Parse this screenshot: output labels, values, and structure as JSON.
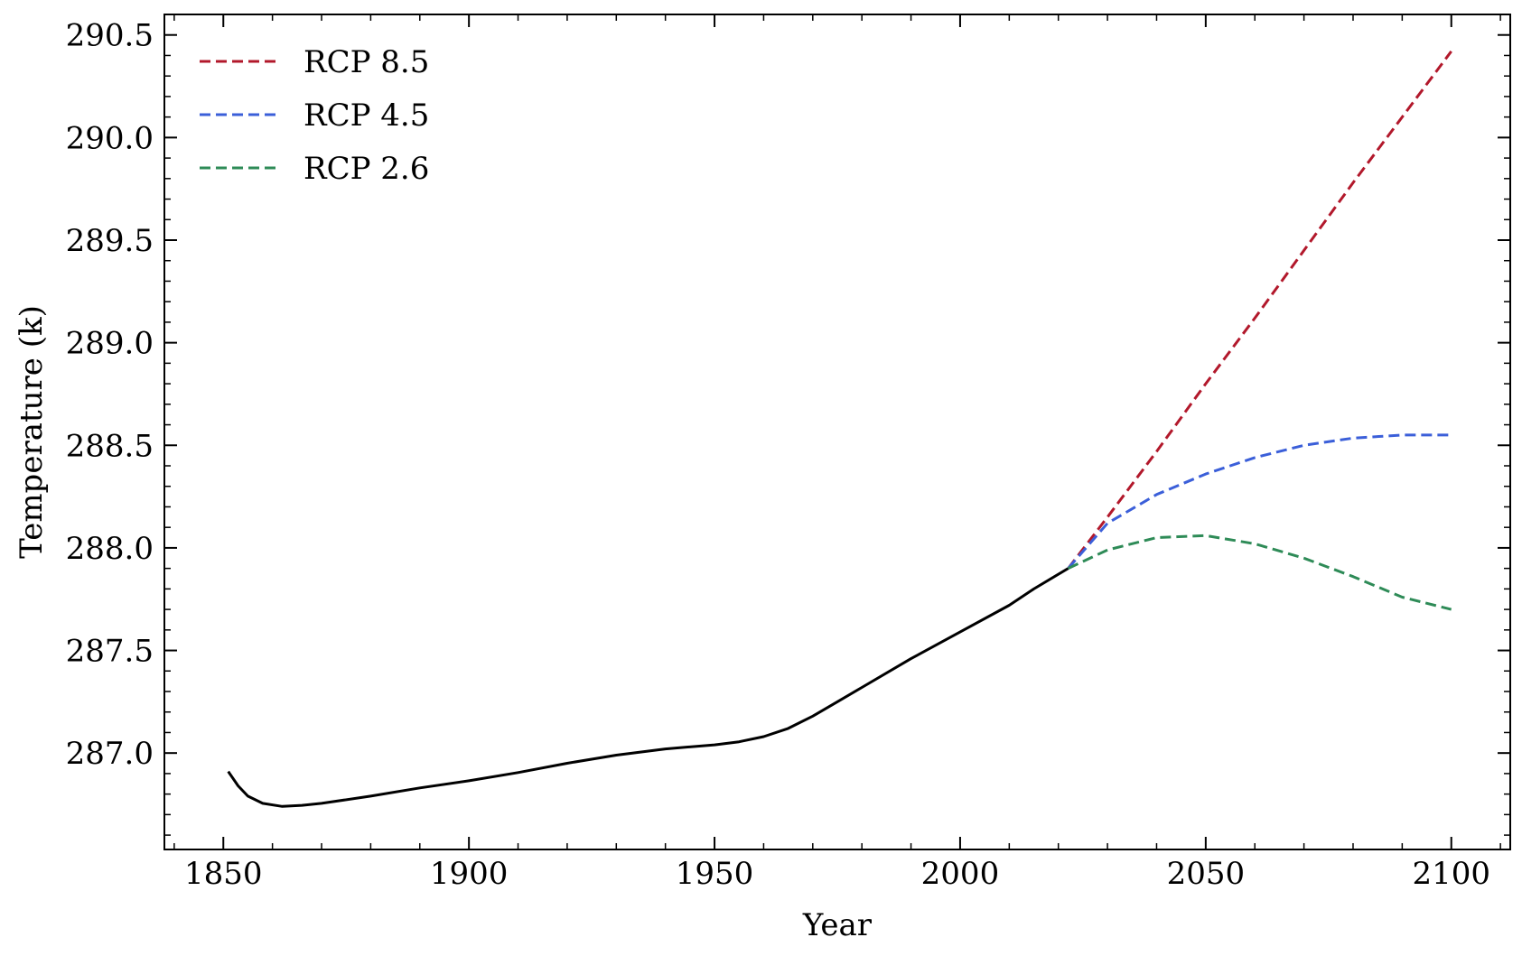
{
  "chart_data": {
    "type": "line",
    "title": "",
    "xlabel": "Year",
    "ylabel": "Temperature (k)",
    "xlim": [
      1838,
      2112
    ],
    "ylim": [
      286.53,
      290.6
    ],
    "x_ticks": [
      1850,
      1900,
      1950,
      2000,
      2050,
      2100
    ],
    "x_tick_labels": [
      "1850",
      "1900",
      "1950",
      "2000",
      "2050",
      "2100"
    ],
    "y_ticks": [
      287.0,
      287.5,
      288.0,
      288.5,
      289.0,
      289.5,
      290.0,
      290.5
    ],
    "y_tick_labels": [
      "287.0",
      "287.5",
      "288.0",
      "288.5",
      "289.0",
      "289.5",
      "290.0",
      "290.5"
    ],
    "grid": false,
    "legend_position": "top-left",
    "series": [
      {
        "color": "#000000",
        "dashed": false,
        "x": [
          1851,
          1853,
          1855,
          1858,
          1862,
          1866,
          1870,
          1880,
          1890,
          1900,
          1910,
          1920,
          1930,
          1940,
          1950,
          1955,
          1960,
          1965,
          1970,
          1975,
          1980,
          1990,
          2000,
          2010,
          2015,
          2022
        ],
        "y": [
          286.91,
          286.84,
          286.79,
          286.755,
          286.74,
          286.745,
          286.755,
          286.79,
          286.83,
          286.865,
          286.905,
          286.95,
          286.99,
          287.02,
          287.04,
          287.055,
          287.08,
          287.12,
          287.18,
          287.25,
          287.32,
          287.46,
          287.59,
          287.72,
          287.8,
          287.9
        ]
      },
      {
        "name": "RCP 8.5",
        "color": "#b2182b",
        "dashed": true,
        "x": [
          2022,
          2030,
          2040,
          2050,
          2060,
          2070,
          2080,
          2090,
          2100
        ],
        "y": [
          287.9,
          288.15,
          288.47,
          288.8,
          289.12,
          289.45,
          289.78,
          290.1,
          290.42
        ]
      },
      {
        "name": "RCP 4.5",
        "color": "#3b5fd9",
        "dashed": true,
        "x": [
          2022,
          2030,
          2040,
          2050,
          2060,
          2070,
          2080,
          2090,
          2100
        ],
        "y": [
          287.9,
          288.12,
          288.26,
          288.36,
          288.44,
          288.5,
          288.535,
          288.55,
          288.55
        ]
      },
      {
        "name": "RCP 2.6",
        "color": "#2e8b57",
        "dashed": true,
        "x": [
          2022,
          2030,
          2040,
          2050,
          2060,
          2070,
          2080,
          2090,
          2100
        ],
        "y": [
          287.9,
          287.99,
          288.05,
          288.06,
          288.02,
          287.95,
          287.86,
          287.76,
          287.7
        ]
      }
    ]
  }
}
